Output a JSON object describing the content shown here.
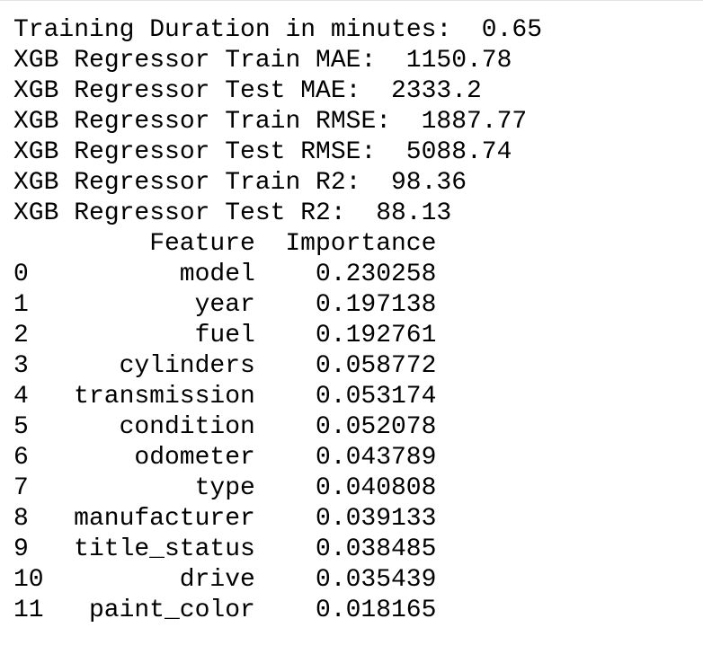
{
  "metrics": [
    {
      "label": "Training Duration in minutes:",
      "value": 0.65
    },
    {
      "label": "XGB Regressor Train MAE:",
      "value": 1150.78
    },
    {
      "label": "XGB Regressor Test MAE:",
      "value": 2333.2
    },
    {
      "label": "XGB Regressor Train RMSE:",
      "value": 1887.77
    },
    {
      "label": "XGB Regressor Test RMSE:",
      "value": 5088.74
    },
    {
      "label": "XGB Regressor Train R2:",
      "value": 98.36
    },
    {
      "label": "XGB Regressor Test R2:",
      "value": 88.13
    }
  ],
  "table": {
    "columns": [
      "Feature",
      "Importance"
    ],
    "rows": [
      [
        0,
        "model",
        0.230258
      ],
      [
        1,
        "year",
        0.197138
      ],
      [
        2,
        "fuel",
        0.192761
      ],
      [
        3,
        "cylinders",
        0.058772
      ],
      [
        4,
        "transmission",
        0.053174
      ],
      [
        5,
        "condition",
        0.052078
      ],
      [
        6,
        "odometer",
        0.043789
      ],
      [
        7,
        "type",
        0.040808
      ],
      [
        8,
        "manufacturer",
        0.039133
      ],
      [
        9,
        "title_status",
        0.038485
      ],
      [
        10,
        "drive",
        0.035439
      ],
      [
        11,
        "paint_color",
        0.018165
      ]
    ]
  }
}
